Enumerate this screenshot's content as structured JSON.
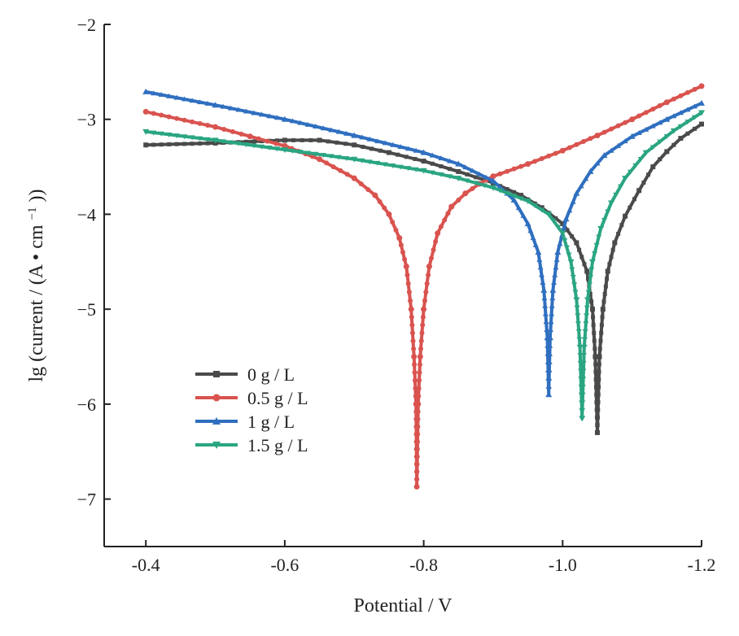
{
  "chart_data": {
    "type": "line",
    "title": "",
    "xlabel": "Potential / V",
    "ylabel_parts": {
      "pre": "lg (current / (A • cm",
      "sup": "−1",
      "post": "))"
    },
    "xlim": [
      -0.34,
      -1.2
    ],
    "ylim": [
      -7.5,
      -2
    ],
    "x_ticks": [
      -0.4,
      -0.6,
      -0.8,
      -1.0,
      -1.2
    ],
    "x_tick_labels": [
      "-0.4",
      "-0.6",
      "-0.8",
      "-1.0",
      "-1.2"
    ],
    "y_ticks": [
      -2,
      -3,
      -4,
      -5,
      -6,
      -7
    ],
    "y_tick_labels": [
      "−2",
      "−3",
      "−4",
      "−5",
      "−6",
      "−7"
    ],
    "grid": false,
    "legend_position": "lower-left",
    "series": [
      {
        "name": "0 g / L",
        "color": "#4a4a4a",
        "marker": "square",
        "points": [
          [
            -0.4,
            -3.27
          ],
          [
            -0.5,
            -3.25
          ],
          [
            -0.6,
            -3.22
          ],
          [
            -0.65,
            -3.22
          ],
          [
            -0.7,
            -3.27
          ],
          [
            -0.75,
            -3.35
          ],
          [
            -0.8,
            -3.44
          ],
          [
            -0.85,
            -3.55
          ],
          [
            -0.9,
            -3.67
          ],
          [
            -0.94,
            -3.8
          ],
          [
            -0.97,
            -3.93
          ],
          [
            -1.0,
            -4.1
          ],
          [
            -1.02,
            -4.3
          ],
          [
            -1.035,
            -4.6
          ],
          [
            -1.043,
            -5.0
          ],
          [
            -1.047,
            -5.5
          ],
          [
            -1.05,
            -6.3
          ],
          [
            -1.053,
            -5.5
          ],
          [
            -1.058,
            -5.0
          ],
          [
            -1.065,
            -4.6
          ],
          [
            -1.075,
            -4.3
          ],
          [
            -1.09,
            -4.02
          ],
          [
            -1.11,
            -3.75
          ],
          [
            -1.13,
            -3.5
          ],
          [
            -1.15,
            -3.34
          ],
          [
            -1.17,
            -3.2
          ],
          [
            -1.2,
            -3.05
          ]
        ]
      },
      {
        "name": "0.5 g / L",
        "color": "#d9534f",
        "marker": "circle",
        "points": [
          [
            -0.4,
            -2.92
          ],
          [
            -0.5,
            -3.08
          ],
          [
            -0.55,
            -3.18
          ],
          [
            -0.6,
            -3.28
          ],
          [
            -0.65,
            -3.42
          ],
          [
            -0.7,
            -3.62
          ],
          [
            -0.73,
            -3.8
          ],
          [
            -0.75,
            -4.0
          ],
          [
            -0.765,
            -4.25
          ],
          [
            -0.775,
            -4.55
          ],
          [
            -0.782,
            -5.0
          ],
          [
            -0.786,
            -5.5
          ],
          [
            -0.789,
            -6.0
          ],
          [
            -0.79,
            -6.87
          ],
          [
            -0.792,
            -6.0
          ],
          [
            -0.795,
            -5.5
          ],
          [
            -0.8,
            -5.0
          ],
          [
            -0.808,
            -4.55
          ],
          [
            -0.82,
            -4.2
          ],
          [
            -0.84,
            -3.92
          ],
          [
            -0.86,
            -3.78
          ],
          [
            -0.88,
            -3.68
          ],
          [
            -0.9,
            -3.6
          ],
          [
            -0.95,
            -3.47
          ],
          [
            -1.0,
            -3.33
          ],
          [
            -1.05,
            -3.17
          ],
          [
            -1.1,
            -3.0
          ],
          [
            -1.15,
            -2.82
          ],
          [
            -1.2,
            -2.65
          ]
        ]
      },
      {
        "name": "1 g / L",
        "color": "#2f6fc0",
        "marker": "triangle-up",
        "points": [
          [
            -0.4,
            -2.71
          ],
          [
            -0.5,
            -2.85
          ],
          [
            -0.6,
            -3.0
          ],
          [
            -0.7,
            -3.17
          ],
          [
            -0.8,
            -3.35
          ],
          [
            -0.85,
            -3.47
          ],
          [
            -0.9,
            -3.65
          ],
          [
            -0.93,
            -3.85
          ],
          [
            -0.95,
            -4.1
          ],
          [
            -0.965,
            -4.4
          ],
          [
            -0.973,
            -4.8
          ],
          [
            -0.978,
            -5.3
          ],
          [
            -0.98,
            -5.9
          ],
          [
            -0.982,
            -5.3
          ],
          [
            -0.986,
            -4.8
          ],
          [
            -0.993,
            -4.4
          ],
          [
            -1.005,
            -4.05
          ],
          [
            -1.02,
            -3.78
          ],
          [
            -1.04,
            -3.55
          ],
          [
            -1.06,
            -3.38
          ],
          [
            -1.1,
            -3.18
          ],
          [
            -1.15,
            -3.0
          ],
          [
            -1.2,
            -2.83
          ]
        ]
      },
      {
        "name": "1.5 g / L",
        "color": "#2aa582",
        "marker": "triangle-down",
        "points": [
          [
            -0.4,
            -3.13
          ],
          [
            -0.5,
            -3.22
          ],
          [
            -0.6,
            -3.32
          ],
          [
            -0.7,
            -3.42
          ],
          [
            -0.8,
            -3.54
          ],
          [
            -0.85,
            -3.62
          ],
          [
            -0.9,
            -3.72
          ],
          [
            -0.95,
            -3.86
          ],
          [
            -0.98,
            -4.0
          ],
          [
            -1.0,
            -4.2
          ],
          [
            -1.012,
            -4.5
          ],
          [
            -1.02,
            -4.9
          ],
          [
            -1.025,
            -5.4
          ],
          [
            -1.028,
            -6.15
          ],
          [
            -1.031,
            -5.4
          ],
          [
            -1.036,
            -4.9
          ],
          [
            -1.043,
            -4.5
          ],
          [
            -1.055,
            -4.15
          ],
          [
            -1.07,
            -3.88
          ],
          [
            -1.09,
            -3.62
          ],
          [
            -1.12,
            -3.35
          ],
          [
            -1.16,
            -3.12
          ],
          [
            -1.2,
            -2.93
          ]
        ]
      }
    ]
  }
}
